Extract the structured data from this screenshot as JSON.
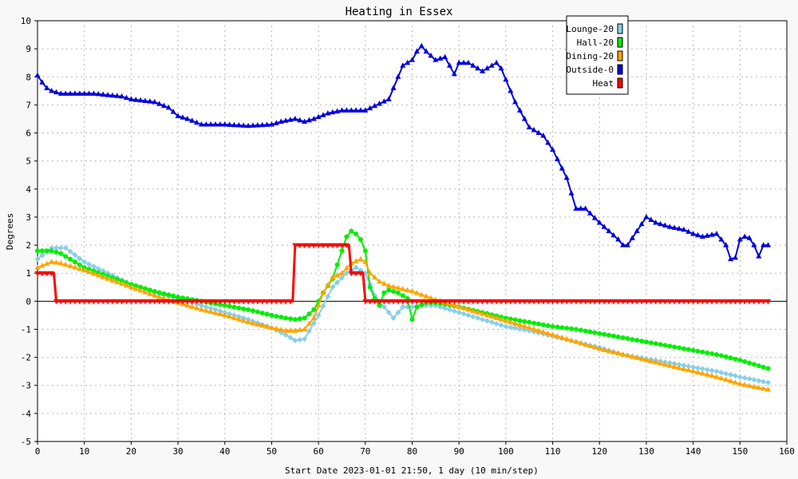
{
  "chart_data": {
    "type": "line",
    "title": "Heating in Essex",
    "xlabel": "Start Date 2023-01-01 21:50, 1 day (10 min/step)",
    "ylabel": "Degrees",
    "xlim": [
      0,
      160
    ],
    "ylim": [
      -5,
      10
    ],
    "xticks": [
      0,
      10,
      20,
      30,
      40,
      50,
      60,
      70,
      80,
      90,
      100,
      110,
      120,
      130,
      140,
      150,
      160
    ],
    "yticks": [
      -5,
      -4,
      -3,
      -2,
      -1,
      0,
      1,
      2,
      3,
      4,
      5,
      6,
      7,
      8,
      9,
      10
    ],
    "grid": true,
    "legend_position": "top-right",
    "series": [
      {
        "name": "Lounge-20",
        "color": "#87ceeb",
        "marker": "diamond",
        "x": [
          0,
          3,
          6,
          10,
          15,
          20,
          25,
          30,
          35,
          40,
          45,
          50,
          53,
          55,
          57,
          60,
          63,
          66,
          68,
          70,
          72,
          74,
          76,
          78,
          80,
          82,
          85,
          90,
          95,
          100,
          105,
          110,
          115,
          120,
          125,
          130,
          135,
          140,
          145,
          150,
          153,
          156
        ],
        "y": [
          1.5,
          1.9,
          1.9,
          1.4,
          1.0,
          0.6,
          0.3,
          0.1,
          -0.15,
          -0.4,
          -0.65,
          -0.95,
          -1.2,
          -1.4,
          -1.35,
          -0.5,
          0.5,
          1.0,
          1.2,
          1.0,
          0.2,
          -0.2,
          -0.6,
          -0.2,
          -0.2,
          -0.15,
          -0.15,
          -0.4,
          -0.65,
          -0.9,
          -1.05,
          -1.25,
          -1.45,
          -1.65,
          -1.9,
          -2.05,
          -2.2,
          -2.35,
          -2.5,
          -2.7,
          -2.8,
          -2.9
        ]
      },
      {
        "name": "Hall-20",
        "color": "#00ee00",
        "marker": "circle",
        "x": [
          0,
          3,
          5,
          10,
          15,
          20,
          25,
          30,
          35,
          40,
          45,
          50,
          53,
          55,
          57,
          59,
          61,
          63,
          65,
          66,
          67,
          68,
          69,
          70,
          71,
          72,
          73,
          74,
          75,
          77,
          79,
          80,
          81,
          83,
          85,
          90,
          95,
          100,
          105,
          110,
          115,
          120,
          125,
          130,
          135,
          140,
          145,
          150,
          153,
          156
        ],
        "y": [
          1.8,
          1.8,
          1.7,
          1.2,
          0.9,
          0.6,
          0.35,
          0.15,
          0.0,
          -0.15,
          -0.3,
          -0.5,
          -0.6,
          -0.65,
          -0.6,
          -0.3,
          0.3,
          0.8,
          1.8,
          2.3,
          2.5,
          2.4,
          2.2,
          1.8,
          0.5,
          0.1,
          -0.15,
          0.3,
          0.4,
          0.3,
          0.1,
          -0.65,
          -0.2,
          -0.05,
          -0.05,
          -0.2,
          -0.4,
          -0.6,
          -0.75,
          -0.9,
          -1.0,
          -1.15,
          -1.3,
          -1.45,
          -1.6,
          -1.75,
          -1.9,
          -2.1,
          -2.25,
          -2.4
        ]
      },
      {
        "name": "Dining-20",
        "color": "#ffa500",
        "marker": "triangle",
        "x": [
          0,
          3,
          5,
          10,
          15,
          20,
          25,
          30,
          35,
          40,
          45,
          50,
          53,
          55,
          57,
          59,
          61,
          63,
          65,
          67,
          69,
          70,
          71,
          73,
          75,
          80,
          85,
          90,
          95,
          100,
          105,
          110,
          115,
          120,
          125,
          130,
          135,
          140,
          145,
          150,
          153,
          156
        ],
        "y": [
          1.2,
          1.4,
          1.35,
          1.1,
          0.8,
          0.5,
          0.2,
          -0.05,
          -0.3,
          -0.5,
          -0.75,
          -0.95,
          -1.05,
          -1.05,
          -1.0,
          -0.6,
          0.3,
          0.85,
          1.0,
          1.35,
          1.5,
          1.4,
          1.0,
          0.7,
          0.55,
          0.35,
          0.05,
          -0.2,
          -0.45,
          -0.7,
          -0.95,
          -1.2,
          -1.45,
          -1.7,
          -1.9,
          -2.1,
          -2.3,
          -2.5,
          -2.7,
          -2.95,
          -3.05,
          -3.15
        ]
      },
      {
        "name": "Outside-0",
        "color": "#0000dd",
        "marker": "triangle",
        "x": [
          0,
          1,
          2,
          3,
          5,
          8,
          12,
          18,
          20,
          25,
          28,
          30,
          32,
          35,
          40,
          45,
          50,
          52,
          55,
          57,
          59,
          62,
          65,
          70,
          75,
          78,
          80,
          81,
          82,
          83,
          85,
          87,
          89,
          90,
          92,
          95,
          97,
          98,
          99,
          100,
          102,
          105,
          108,
          110,
          113,
          115,
          117,
          120,
          122,
          124,
          125,
          126,
          128,
          130,
          132,
          135,
          138,
          140,
          142,
          145,
          147,
          148,
          149,
          150,
          151,
          152,
          153,
          154,
          155,
          156
        ],
        "y": [
          8.05,
          7.8,
          7.6,
          7.5,
          7.4,
          7.4,
          7.4,
          7.3,
          7.2,
          7.1,
          6.9,
          6.6,
          6.5,
          6.3,
          6.3,
          6.25,
          6.3,
          6.4,
          6.5,
          6.4,
          6.5,
          6.7,
          6.8,
          6.8,
          7.2,
          8.4,
          8.6,
          8.9,
          9.1,
          8.9,
          8.6,
          8.7,
          8.1,
          8.5,
          8.5,
          8.2,
          8.4,
          8.5,
          8.3,
          7.9,
          7.1,
          6.2,
          5.9,
          5.4,
          4.4,
          3.3,
          3.3,
          2.8,
          2.5,
          2.2,
          2.0,
          2.0,
          2.5,
          3.0,
          2.8,
          2.65,
          2.55,
          2.4,
          2.3,
          2.4,
          2.0,
          1.5,
          1.55,
          2.2,
          2.3,
          2.25,
          2.0,
          1.6,
          2.0,
          2.0
        ]
      },
      {
        "name": "Heat",
        "color": "#ff0000",
        "marker": "triangle-down",
        "x": [
          0,
          3.5,
          4,
          54.5,
          55,
          66.5,
          67,
          69.5,
          70,
          156
        ],
        "y": [
          1,
          1,
          0,
          0,
          2,
          2,
          1,
          1,
          0,
          0
        ]
      }
    ]
  }
}
